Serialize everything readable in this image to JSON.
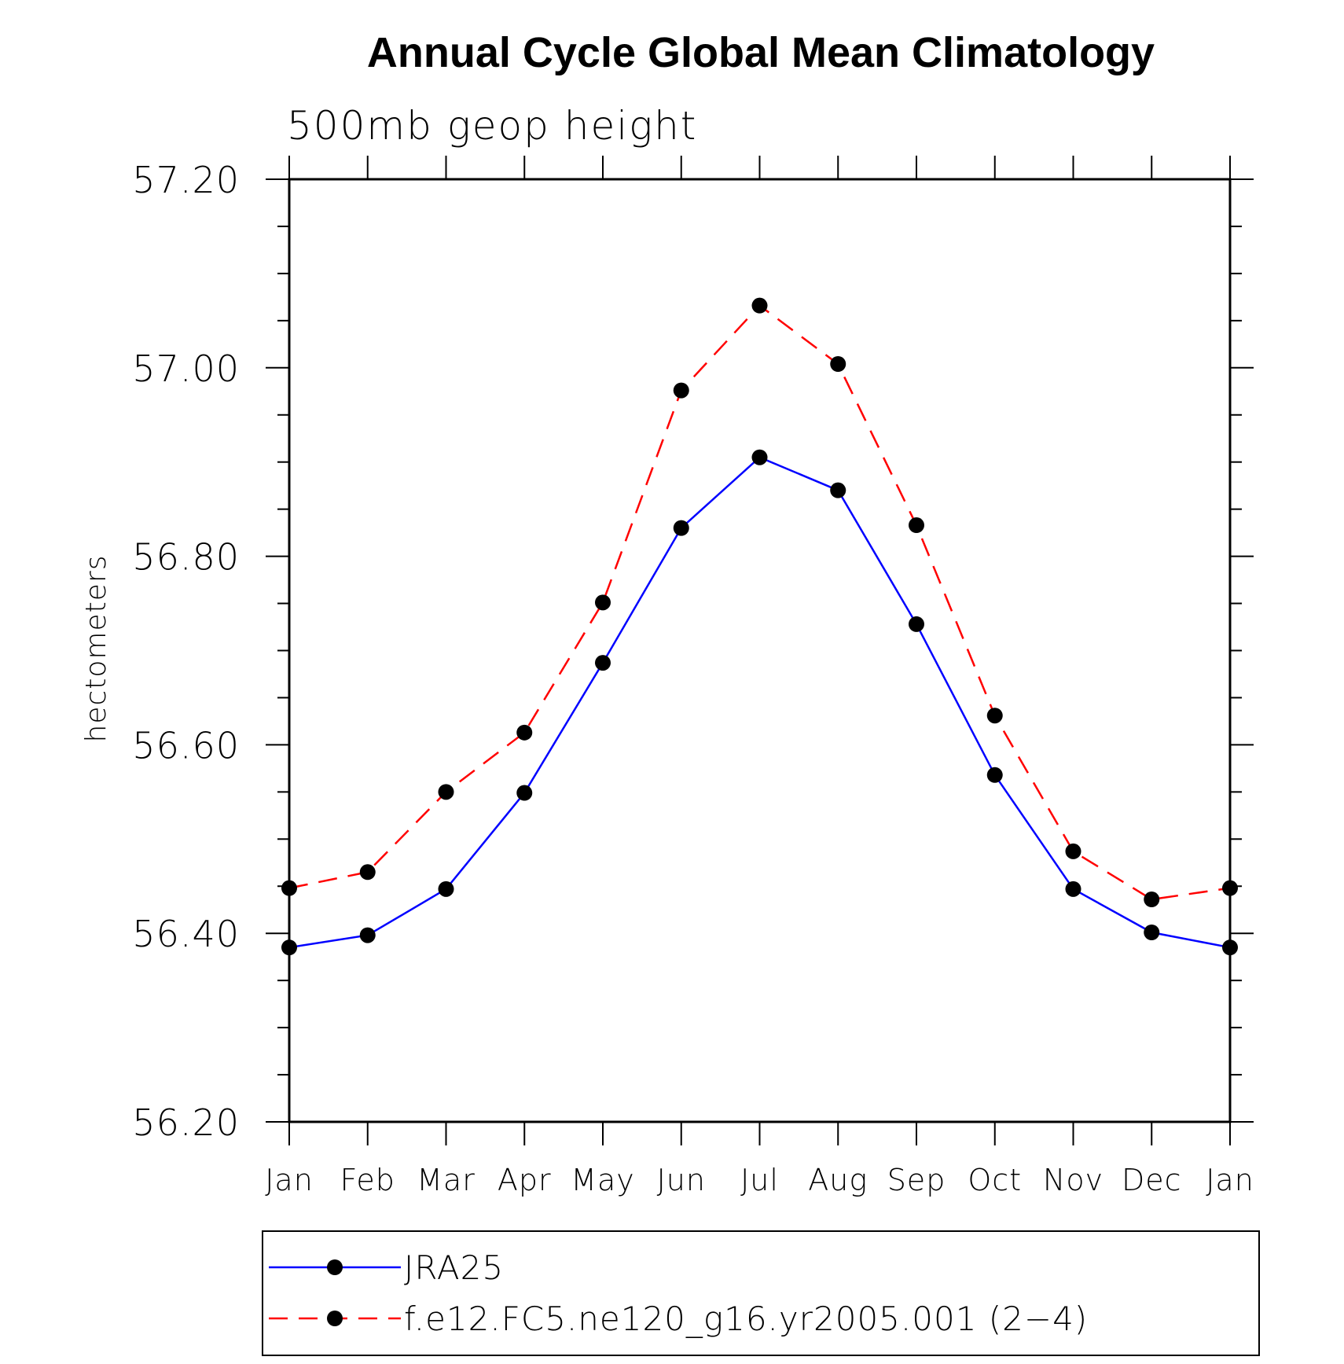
{
  "chart_data": {
    "type": "line",
    "title": "Annual Cycle Global Mean Climatology",
    "subtitle": "500mb geop height",
    "xlabel": "",
    "ylabel": "hectometers",
    "categories": [
      "Jan",
      "Feb",
      "Mar",
      "Apr",
      "May",
      "Jun",
      "Jul",
      "Aug",
      "Sep",
      "Oct",
      "Nov",
      "Dec",
      "Jan"
    ],
    "ylim": [
      56.2,
      57.2
    ],
    "yticks": [
      "56.20",
      "56.40",
      "56.60",
      "56.80",
      "57.00",
      "57.20"
    ],
    "series": [
      {
        "name": "JRA25",
        "color": "#0000ff",
        "dash": "solid",
        "marker": "filled-circle",
        "values": [
          56.385,
          56.398,
          56.447,
          56.549,
          56.687,
          56.83,
          56.905,
          56.87,
          56.728,
          56.568,
          56.447,
          56.401,
          56.385
        ]
      },
      {
        "name": "f.e12.FC5.ne120_g16.yr2005.001 (2−4)",
        "color": "#ff0000",
        "dash": "dashed",
        "marker": "filled-circle",
        "values": [
          56.448,
          56.465,
          56.55,
          56.613,
          56.751,
          56.976,
          57.066,
          57.004,
          56.833,
          56.631,
          56.487,
          56.436,
          56.448
        ]
      }
    ],
    "grid": false,
    "legend_position": "bottom"
  }
}
